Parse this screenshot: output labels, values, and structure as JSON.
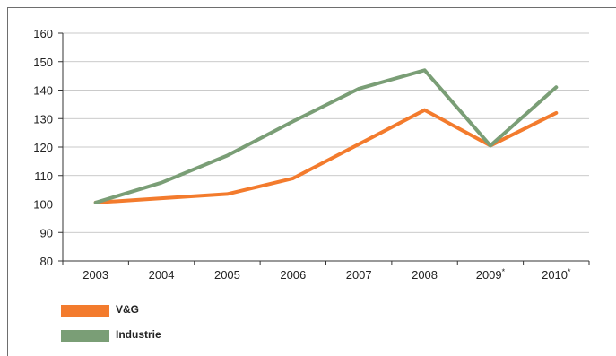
{
  "chart_data": {
    "type": "line",
    "title": "",
    "xlabel": "",
    "ylabel": "",
    "categories": [
      "2003",
      "2004",
      "2005",
      "2006",
      "2007",
      "2008",
      "2009",
      "2010"
    ],
    "category_suffix": [
      "",
      "",
      "",
      "",
      "",
      "",
      "*",
      "*"
    ],
    "ylim": [
      80,
      160
    ],
    "yticks": [
      80,
      90,
      100,
      110,
      120,
      130,
      140,
      150,
      160
    ],
    "grid": true,
    "legend_position": "bottom-left",
    "series": [
      {
        "name": "V&G",
        "color": "#f37b2d",
        "values": [
          100.5,
          102,
          103.5,
          109,
          121,
          133,
          120.5,
          132
        ]
      },
      {
        "name": "Industrie",
        "color": "#7a9e76",
        "values": [
          100.5,
          107.5,
          117,
          129,
          140.5,
          147,
          120.5,
          141
        ]
      }
    ]
  }
}
